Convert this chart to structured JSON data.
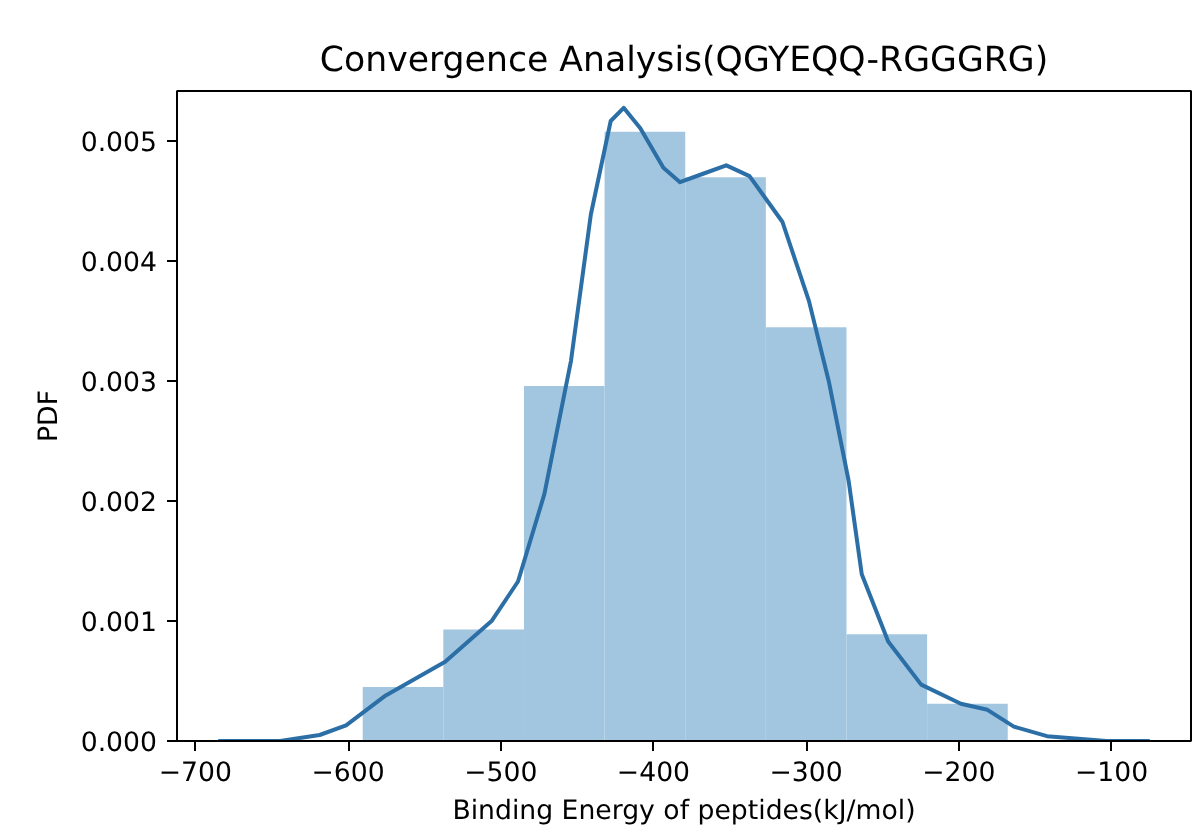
{
  "chart_data": {
    "type": "histogram",
    "title": "Convergence Analysis(QGYEQQ-RGGGRG)",
    "xlabel": "Binding Energy of peptides(kJ/mol)",
    "ylabel": "PDF",
    "xlim": [
      -712,
      -48
    ],
    "ylim": [
      0,
      0.00542
    ],
    "xticks": [
      {
        "value": -700,
        "label": "−700"
      },
      {
        "value": -600,
        "label": "−600"
      },
      {
        "value": -500,
        "label": "−500"
      },
      {
        "value": -400,
        "label": "−400"
      },
      {
        "value": -300,
        "label": "−300"
      },
      {
        "value": -200,
        "label": "−200"
      },
      {
        "value": -100,
        "label": "−100"
      }
    ],
    "yticks": [
      {
        "value": 0,
        "label": "0.000"
      },
      {
        "value": 0.001,
        "label": "0.001"
      },
      {
        "value": 0.002,
        "label": "0.002"
      },
      {
        "value": 0.003,
        "label": "0.003"
      },
      {
        "value": 0.004,
        "label": "0.004"
      },
      {
        "value": 0.005,
        "label": "0.005"
      }
    ],
    "grid": false,
    "series": [
      {
        "color": "#a3c6e0",
        "bins": [
          -590.4,
          -537.6,
          -484.8,
          -432.0,
          -379.2,
          -326.4,
          -273.6,
          -220.8,
          -168.0
        ],
        "values": [
          0.00045,
          0.00093,
          0.00296,
          0.00508,
          0.0047,
          0.00345,
          0.00089,
          0.00031
        ]
      },
      {
        "type": "line",
        "color": "#2b6fa6",
        "x": [
          -685,
          -644.5,
          -618.6,
          -601.3,
          -575.3,
          -536.4,
          -506,
          -488.7,
          -471.4,
          -454,
          -441,
          -428,
          -419.5,
          -408.6,
          -393.5,
          -382.6,
          -367.5,
          -352.3,
          -337.1,
          -315.6,
          -298.2,
          -285.2,
          -272.2,
          -263.6,
          -246.3,
          -224.7,
          -198.7,
          -181.3,
          -164,
          -142.3,
          -103.3,
          -75
        ],
        "values": [
          0.0,
          0.0,
          5e-05,
          0.00013,
          0.00038,
          0.00066,
          0.001,
          0.00133,
          0.00206,
          0.00317,
          0.00439,
          0.00517,
          0.00528,
          0.00511,
          0.00478,
          0.00466,
          0.00473,
          0.0048,
          0.00471,
          0.00433,
          0.00367,
          0.003,
          0.00217,
          0.00139,
          0.00083,
          0.00047,
          0.00031,
          0.00026,
          0.00012,
          4e-05,
          0.0,
          0.0
        ]
      }
    ]
  }
}
